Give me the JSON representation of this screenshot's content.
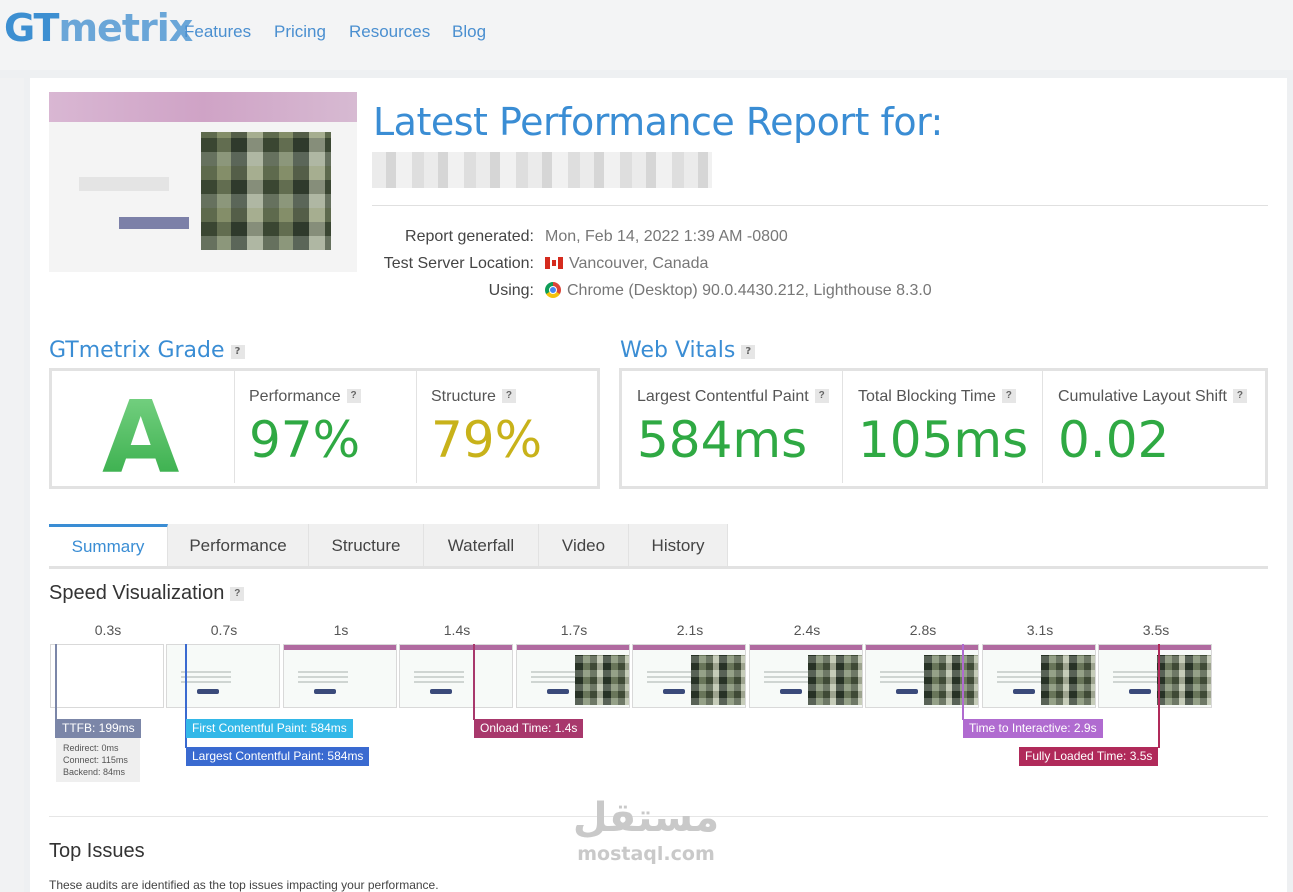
{
  "nav": {
    "logo_gt": "GT",
    "logo_rest": "metrix",
    "links": [
      "Features",
      "Pricing",
      "Resources",
      "Blog"
    ]
  },
  "report": {
    "title": "Latest Performance Report for:",
    "generated_label": "Report generated:",
    "generated_value": "Mon, Feb 14, 2022 1:39 AM -0800",
    "location_label": "Test Server Location:",
    "location_value": "Vancouver, Canada",
    "using_label": "Using:",
    "using_value": "Chrome (Desktop) 90.0.4430.212, Lighthouse 8.3.0"
  },
  "grade": {
    "heading": "GTmetrix Grade",
    "letter": "A",
    "performance_label": "Performance",
    "performance_value": "97%",
    "structure_label": "Structure",
    "structure_value": "79%"
  },
  "vitals": {
    "heading": "Web Vitals",
    "lcp_label": "Largest Contentful Paint",
    "lcp_value": "584ms",
    "tbt_label": "Total Blocking Time",
    "tbt_value": "105ms",
    "cls_label": "Cumulative Layout Shift",
    "cls_value": "0.02"
  },
  "tabs": [
    "Summary",
    "Performance",
    "Structure",
    "Waterfall",
    "Video",
    "History"
  ],
  "speed": {
    "heading": "Speed Visualization",
    "ticks": [
      "0.3s",
      "0.7s",
      "1s",
      "1.4s",
      "1.7s",
      "2.1s",
      "2.4s",
      "2.8s",
      "3.1s",
      "3.5s"
    ],
    "ttfb": "TTFB: 199ms",
    "redirect": "Redirect: 0ms",
    "connect": "Connect: 115ms",
    "backend": "Backend: 84ms",
    "fcp": "First Contentful Paint: 584ms",
    "lcp": "Largest Contentful Paint: 584ms",
    "onload": "Onload Time: 1.4s",
    "tti": "Time to Interactive: 2.9s",
    "fully_loaded": "Fully Loaded Time: 3.5s"
  },
  "issues": {
    "heading": "Top Issues",
    "description": "These audits are identified as the top issues impacting your performance."
  },
  "watermark": {
    "arabic": "مستقل",
    "latin": "mostaql.com"
  },
  "colors": {
    "brand_blue": "#3a8dd4",
    "good_green": "#2fa943",
    "warn_yellow": "#c8b21a",
    "ttfb": "#7b86a8",
    "fcp": "#33b8e8",
    "lcp": "#3a6ad0",
    "onload": "#a8386c",
    "tti": "#b06bd0",
    "fully_loaded": "#b02a5a"
  },
  "icons": [
    "question-icon",
    "canada-flag-icon",
    "chrome-icon"
  ]
}
